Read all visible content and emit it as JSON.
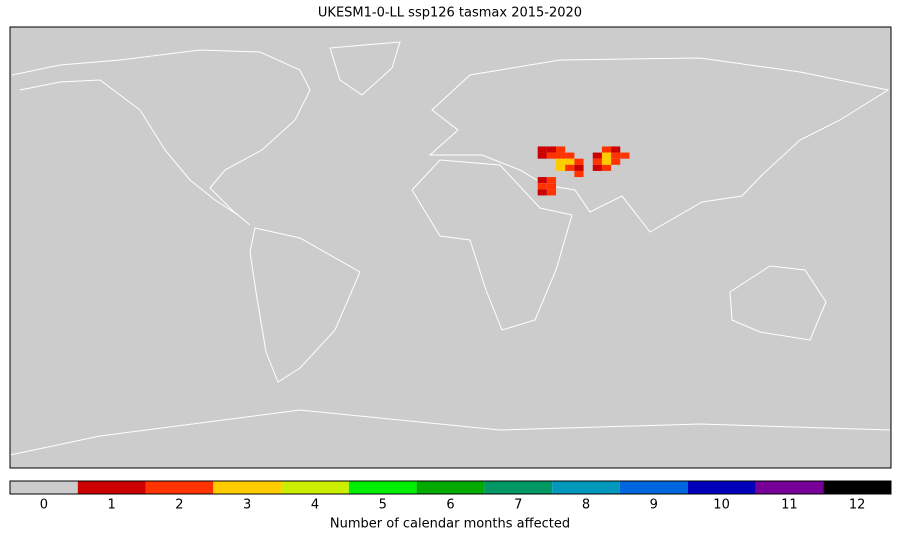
{
  "chart_data": {
    "type": "map",
    "title": "UKESM1-0-LL ssp126 tasmax 2015-2020",
    "lon": [
      37.5,
      41.25,
      45,
      37.5,
      41.25,
      45,
      48.75,
      45,
      48.75,
      52.5,
      45,
      48.75,
      52.5,
      52.5,
      37.5,
      41.25,
      37.5,
      41.25,
      41.25,
      37.5,
      63.75,
      67.5,
      60,
      63.75,
      67.5,
      71.25,
      60,
      63.75,
      67.5,
      60,
      63.75
    ],
    "lat": [
      40,
      40,
      40,
      37.5,
      37.5,
      37.5,
      37.5,
      35,
      35,
      35,
      32.5,
      32.5,
      32.5,
      30,
      27.5,
      27.5,
      25,
      25,
      22.5,
      22.5,
      40,
      40,
      37.5,
      37.5,
      37.5,
      37.5,
      35,
      35,
      35,
      32.5,
      32.5
    ],
    "values": [
      1,
      1,
      2,
      1,
      2,
      2,
      2,
      3,
      3,
      2,
      3,
      2,
      1,
      2,
      1,
      2,
      2,
      2,
      2,
      1,
      2,
      1,
      1,
      3,
      2,
      2,
      2,
      3,
      2,
      1,
      2
    ],
    "xlim": [
      -180,
      180
    ],
    "ylim": [
      -90,
      90
    ],
    "colorbar": {
      "label": "Number of calendar months affected",
      "ticks": [
        0,
        1,
        2,
        3,
        4,
        5,
        6,
        7,
        8,
        9,
        10,
        11,
        12
      ],
      "colors": [
        "#cccccc",
        "#cc0000",
        "#ff3300",
        "#ffcc00",
        "#ccee00",
        "#00ee00",
        "#00aa00",
        "#009966",
        "#0099bb",
        "#0066dd",
        "#0000bb",
        "#770099",
        "#000000"
      ]
    }
  }
}
